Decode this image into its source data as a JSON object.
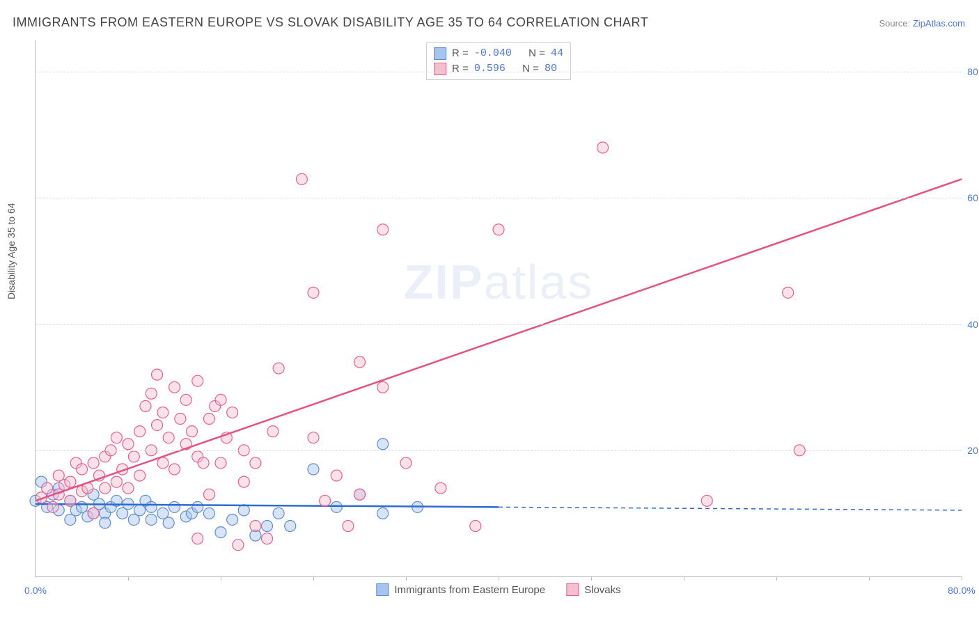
{
  "title": "IMMIGRANTS FROM EASTERN EUROPE VS SLOVAK DISABILITY AGE 35 TO 64 CORRELATION CHART",
  "source_label": "Source: ",
  "source_link": "ZipAtlas.com",
  "ylabel": "Disability Age 35 to 64",
  "watermark_zip": "ZIP",
  "watermark_atlas": "atlas",
  "chart": {
    "type": "scatter",
    "xlim": [
      0,
      80
    ],
    "ylim": [
      0,
      85
    ],
    "yticks": [
      20,
      40,
      60,
      80
    ],
    "ytick_labels": [
      "20.0%",
      "40.0%",
      "60.0%",
      "80.0%"
    ],
    "xtick_0": "0.0%",
    "xtick_80": "80.0%",
    "xtick_marks": [
      8,
      16,
      24,
      32,
      40,
      48,
      56,
      64,
      72,
      80
    ],
    "background_color": "#ffffff",
    "grid_color": "#dddddd",
    "marker_radius": 8,
    "marker_opacity": 0.45,
    "series": [
      {
        "name": "Immigrants from Eastern Europe",
        "color_fill": "#a6c4ee",
        "color_stroke": "#5b8dd6",
        "line_color": "#2e6bd0",
        "line_solid_to_x": 40,
        "line_dash_after": true,
        "R": "-0.040",
        "N": "44",
        "trend_y_at_x0": 11.5,
        "trend_y_at_x80": 10.5,
        "points": [
          [
            0,
            12
          ],
          [
            0.5,
            15
          ],
          [
            1,
            11
          ],
          [
            1.5,
            13
          ],
          [
            2,
            10.5
          ],
          [
            2,
            14
          ],
          [
            3,
            12
          ],
          [
            3,
            9
          ],
          [
            3.5,
            10.5
          ],
          [
            4,
            11
          ],
          [
            4.5,
            9.5
          ],
          [
            5,
            10
          ],
          [
            5,
            13
          ],
          [
            5.5,
            11.5
          ],
          [
            6,
            10
          ],
          [
            6,
            8.5
          ],
          [
            6.5,
            11
          ],
          [
            7,
            12
          ],
          [
            7.5,
            10
          ],
          [
            8,
            11.5
          ],
          [
            8.5,
            9
          ],
          [
            9,
            10.5
          ],
          [
            9.5,
            12
          ],
          [
            10,
            9
          ],
          [
            10,
            11
          ],
          [
            11,
            10
          ],
          [
            11.5,
            8.5
          ],
          [
            12,
            11
          ],
          [
            13,
            9.5
          ],
          [
            13.5,
            10
          ],
          [
            14,
            11
          ],
          [
            15,
            10
          ],
          [
            16,
            7
          ],
          [
            17,
            9
          ],
          [
            18,
            10.5
          ],
          [
            19,
            6.5
          ],
          [
            20,
            8
          ],
          [
            21,
            10
          ],
          [
            22,
            8
          ],
          [
            24,
            17
          ],
          [
            26,
            11
          ],
          [
            28,
            13
          ],
          [
            30,
            21
          ],
          [
            30,
            10
          ],
          [
            33,
            11
          ]
        ]
      },
      {
        "name": "Slovaks",
        "color_fill": "#f6bfcf",
        "color_stroke": "#e95f8f",
        "line_color": "#e95082",
        "line_solid_to_x": 80,
        "line_dash_after": false,
        "R": "0.596",
        "N": "80",
        "trend_y_at_x0": 12,
        "trend_y_at_x80": 63,
        "points": [
          [
            0.5,
            12.5
          ],
          [
            1,
            14
          ],
          [
            1.5,
            11
          ],
          [
            2,
            13
          ],
          [
            2,
            16
          ],
          [
            2.5,
            14.5
          ],
          [
            3,
            12
          ],
          [
            3,
            15
          ],
          [
            3.5,
            18
          ],
          [
            4,
            13.5
          ],
          [
            4,
            17
          ],
          [
            4.5,
            14
          ],
          [
            5,
            18
          ],
          [
            5,
            10
          ],
          [
            5.5,
            16
          ],
          [
            6,
            19
          ],
          [
            6,
            14
          ],
          [
            6.5,
            20
          ],
          [
            7,
            15
          ],
          [
            7,
            22
          ],
          [
            7.5,
            17
          ],
          [
            8,
            21
          ],
          [
            8,
            14
          ],
          [
            8.5,
            19
          ],
          [
            9,
            23
          ],
          [
            9,
            16
          ],
          [
            9.5,
            27
          ],
          [
            10,
            29
          ],
          [
            10,
            20
          ],
          [
            10.5,
            24
          ],
          [
            10.5,
            32
          ],
          [
            11,
            18
          ],
          [
            11,
            26
          ],
          [
            11.5,
            22
          ],
          [
            12,
            30
          ],
          [
            12,
            17
          ],
          [
            12.5,
            25
          ],
          [
            13,
            28
          ],
          [
            13,
            21
          ],
          [
            13.5,
            23
          ],
          [
            14,
            19
          ],
          [
            14,
            31
          ],
          [
            14.5,
            18
          ],
          [
            14,
            6
          ],
          [
            15,
            25
          ],
          [
            15.5,
            27
          ],
          [
            15,
            13
          ],
          [
            16,
            28
          ],
          [
            16,
            18
          ],
          [
            16.5,
            22
          ],
          [
            17,
            26
          ],
          [
            17.5,
            5
          ],
          [
            18,
            20
          ],
          [
            18,
            15
          ],
          [
            19,
            18
          ],
          [
            19,
            8
          ],
          [
            20,
            6
          ],
          [
            20.5,
            23
          ],
          [
            21,
            33
          ],
          [
            23,
            63
          ],
          [
            24,
            22
          ],
          [
            24,
            45
          ],
          [
            25,
            12
          ],
          [
            26,
            16
          ],
          [
            27,
            8
          ],
          [
            28,
            13
          ],
          [
            28,
            34
          ],
          [
            30,
            55
          ],
          [
            30,
            30
          ],
          [
            32,
            18
          ],
          [
            35,
            14
          ],
          [
            38,
            8
          ],
          [
            40,
            55
          ],
          [
            49,
            68
          ],
          [
            58,
            12
          ],
          [
            65,
            45
          ],
          [
            66,
            20
          ]
        ]
      }
    ]
  },
  "legend_top": {
    "R_label": "R =",
    "N_label": "N ="
  },
  "legend_bottom": {
    "series1": "Immigrants from Eastern Europe",
    "series2": "Slovaks"
  }
}
